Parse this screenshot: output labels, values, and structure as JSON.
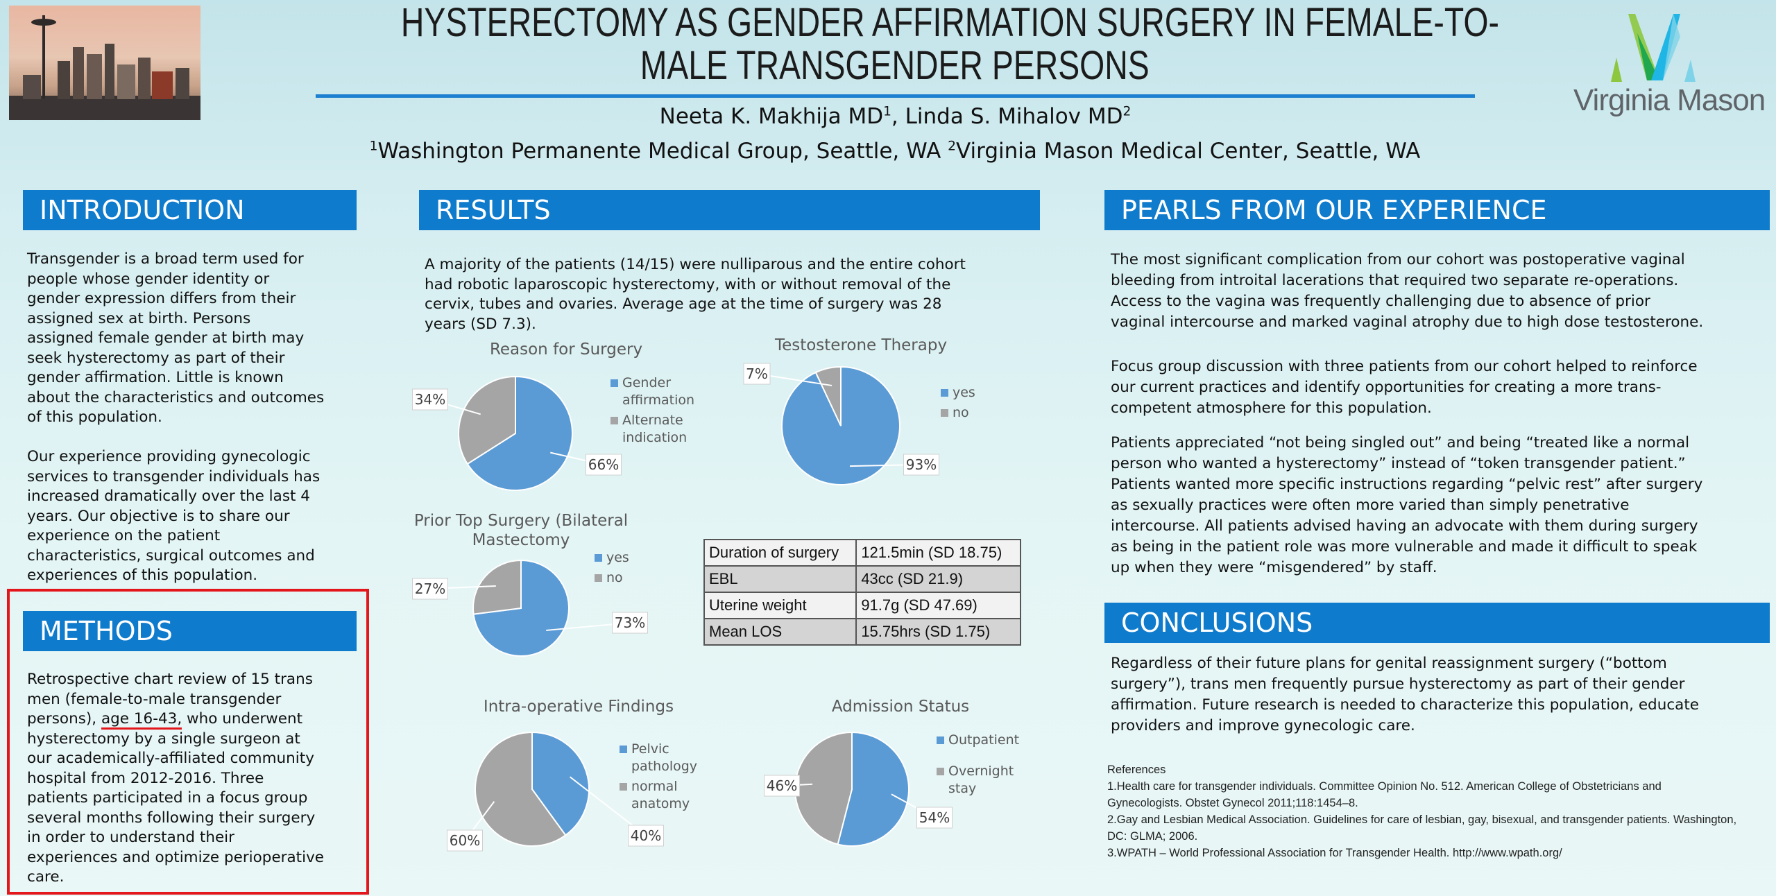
{
  "header": {
    "title_line1": "HYSTERECTOMY AS GENDER AFFIRMATION SURGERY IN FEMALE-TO-",
    "title_line2": "MALE TRANSGENDER PERSONS",
    "author1": "Neeta K. Makhija MD",
    "author1_sup": "1",
    "author_sep": ", ",
    "author2": "Linda S. Mihalov MD",
    "author2_sup": "2",
    "affil1_sup": "1",
    "affil1": "Washington Permanente Medical Group, Seattle, WA ",
    "affil2_sup": "2",
    "affil2": "Virginia Mason Medical Center, Seattle, WA",
    "logo_text": "Virginia Mason",
    "logo_colors": [
      "#8dc63f",
      "#1fa84f",
      "#1fb5e5",
      "#7fd3e8"
    ]
  },
  "colors": {
    "header_bg": "#0f7bcc",
    "series_blue": "#5b9bd5",
    "series_gray": "#a5a5a5",
    "highlight_red": "#e3161b"
  },
  "introduction": {
    "heading": "INTRODUCTION",
    "p1": "Transgender is a broad term used for\npeople whose gender identity or\ngender expression differs from their\nassigned sex at birth. Persons\nassigned female gender at birth may\nseek hysterectomy as part of their\ngender affirmation. Little is known\nabout the characteristics and outcomes\nof this population.",
    "p2": "Our experience providing gynecologic\nservices to transgender individuals has\nincreased dramatically over the last 4\nyears. Our objective is to share our\nexperience on the patient\ncharacteristics, surgical outcomes and\nexperiences of this population."
  },
  "methods": {
    "heading": "METHODS",
    "text_before": "Retrospective chart review of 15 trans\nmen (female-to-male transgender\npersons), ",
    "text_highlight": "age 16-43,",
    "text_after": " who underwent\nhysterectomy by a single surgeon at\nour academically-affiliated community\nhospital from 2012-2016. Three\npatients participated in a focus group\nseveral months following their surgery\nin order to understand their\nexperiences and optimize perioperative\ncare."
  },
  "results": {
    "heading": "RESULTS",
    "intro": "A majority of the patients (14/15) were nulliparous and the entire cohort\nhad robotic laparoscopic hysterectomy, with or without removal of the\ncervix, tubes and ovaries. Average age at the time of surgery was 28\nyears (SD 7.3).",
    "table": [
      {
        "label": "Duration of surgery",
        "value": "121.5min (SD 18.75)"
      },
      {
        "label": "EBL",
        "value": "43cc (SD 21.9)"
      },
      {
        "label": "Uterine weight",
        "value": "91.7g (SD 47.69)"
      },
      {
        "label": "Mean LOS",
        "value": "15.75hrs (SD 1.75)"
      }
    ]
  },
  "chart_data": [
    {
      "type": "pie",
      "title": "Reason for Surgery",
      "categories": [
        "Gender\naffirmation",
        "Alternate\nindication"
      ],
      "values": [
        66,
        34
      ],
      "colors": [
        "#5b9bd5",
        "#a5a5a5"
      ],
      "legend": "right"
    },
    {
      "type": "pie",
      "title": "Testosterone Therapy",
      "categories": [
        "yes",
        "no"
      ],
      "values": [
        93,
        7
      ],
      "colors": [
        "#5b9bd5",
        "#a5a5a5"
      ],
      "legend": "right"
    },
    {
      "type": "pie",
      "title": "Prior Top Surgery (Bilateral\nMastectomy",
      "categories": [
        "yes",
        "no"
      ],
      "values": [
        73,
        27
      ],
      "colors": [
        "#5b9bd5",
        "#a5a5a5"
      ],
      "legend": "right"
    },
    {
      "type": "pie",
      "title": "Intra-operative Findings",
      "categories": [
        "Pelvic\npathology",
        "normal\nanatomy"
      ],
      "values": [
        40,
        60
      ],
      "colors": [
        "#5b9bd5",
        "#a5a5a5"
      ],
      "legend": "right"
    },
    {
      "type": "pie",
      "title": "Admission Status",
      "categories": [
        "Outpatient",
        "Overnight\nstay"
      ],
      "values": [
        54,
        46
      ],
      "colors": [
        "#5b9bd5",
        "#a5a5a5"
      ],
      "legend": "right"
    }
  ],
  "pearls": {
    "heading": "PEARLS FROM OUR EXPERIENCE",
    "p1": "The most significant complication from our cohort was postoperative vaginal\nbleeding from introital lacerations that required two separate re-operations.\nAccess to the vagina was frequently challenging due to absence of prior\nvaginal intercourse and marked vaginal atrophy due to high dose testosterone.",
    "p2": "Focus group discussion with three patients from our cohort helped to reinforce\nour current practices and identify opportunities for creating a more trans-\ncompetent atmosphere for this population.",
    "p3": "Patients appreciated “not being singled out” and being “treated like a normal\nperson who wanted a hysterectomy” instead of “token transgender patient.”\nPatients wanted more specific instructions regarding “pelvic rest” after surgery\nas sexually practices were often more varied than simply penetrative\nintercourse. All patients advised having an advocate with them during surgery\nas being in the patient role was more vulnerable and made it difficult to speak\nup when they were “misgendered” by staff."
  },
  "conclusions": {
    "heading": "CONCLUSIONS",
    "p1": "Regardless of their future plans for genital reassignment surgery (“bottom\nsurgery”), trans men frequently pursue hysterectomy as part of their gender\naffirmation. Future research is needed to characterize this population, educate\nproviders and improve gynecologic care."
  },
  "references": {
    "heading": "References",
    "items": [
      "1.Health care for transgender individuals. Committee Opinion No. 512. American College of Obstetricians and\nGynecologists. Obstet Gynecol 2011;118:1454–8.",
      "2.Gay and Lesbian Medical Association. Guidelines for care of lesbian, gay, bisexual, and transgender patients. Washington,\nDC: GLMA; 2006.",
      "3.WPATH – World Professional Association for Transgender Health. http://www.wpath.org/"
    ]
  }
}
